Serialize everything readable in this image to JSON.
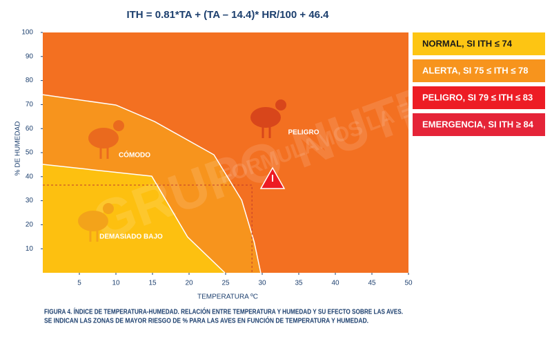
{
  "chart_data": {
    "type": "zones",
    "title": "ITH = 0.81*TA + (TA – 14.4)* HR/100 + 46.4",
    "x_label": "TEMPERATURA ºC",
    "y_label": "% DE HUMEDAD",
    "xlim": [
      0,
      50
    ],
    "ylim": [
      0,
      100
    ],
    "xticks": [
      5,
      10,
      15,
      20,
      25,
      30,
      35,
      40,
      45,
      50
    ],
    "yticks": [
      10,
      20,
      30,
      40,
      50,
      60,
      70,
      80,
      90,
      100
    ],
    "plot_zone": {
      "name": "PELIGRO",
      "color": "#f37021"
    },
    "zones": [
      {
        "name": "CÓMODO",
        "color": "#f7941d",
        "x": [
          0,
          10,
          15.3,
          23.4,
          27.2,
          28.9,
          29.8
        ],
        "y": [
          74.1,
          69.8,
          62.9,
          49.1,
          30.2,
          12.9,
          0
        ]
      },
      {
        "name": "DEMASIADO BAJO",
        "color": "#fdc010",
        "x": [
          0,
          14.9,
          19.8,
          24.9
        ],
        "y": [
          45.1,
          40.2,
          14.9,
          0
        ]
      }
    ],
    "reference": {
      "x": 28.6,
      "y": 36.5
    },
    "legend": [
      {
        "label": "NORMAL, SI ITH ≤ 74",
        "color": "#fdc513"
      },
      {
        "label": "ALERTA, SI 75 ≤ ITH ≤ 78",
        "color": "#f7941d"
      },
      {
        "label": "PELIGRO, SI 79 ≤ ITH ≤ 83",
        "color": "#ed1c24"
      },
      {
        "label": "EMERGENCIA, SI ITH ≥ 84",
        "color": "#e52438"
      }
    ],
    "watermark": [
      "GRUPO NUTEC",
      "FORMULAMOS LA EXCELENCIA"
    ],
    "caption": [
      "FIGURA 4. ÍNDICE DE TEMPERATURA-HUMEDAD. RELACIÓN ENTRE TEMPERATURA Y HUMEDAD Y SU EFECTO SOBRE LAS AVES.",
      "SE INDICAN LAS ZONAS DE MAYOR RIESGO DE % PARA LAS AVES EN FUNCIÓN DE TEMPERATURA Y HUMEDAD."
    ]
  }
}
